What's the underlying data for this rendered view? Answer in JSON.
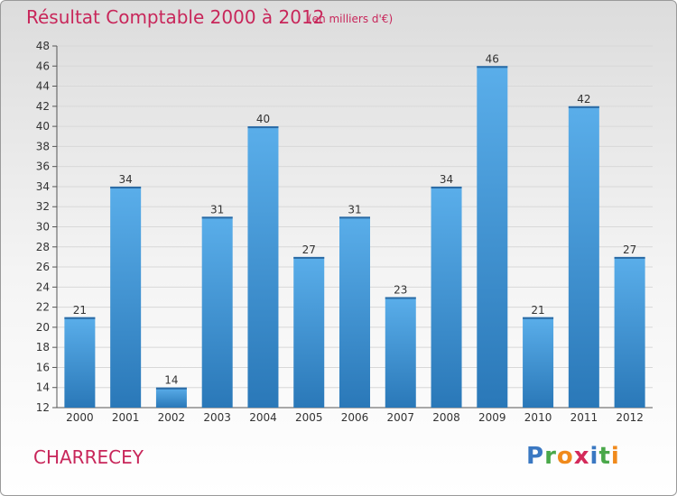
{
  "title": "Résultat Comptable 2000 à 2012",
  "subtitle": "(en milliers d'€)",
  "commune": "CHARRECEY",
  "brand": {
    "letters": [
      "P",
      "r",
      "o",
      "x",
      "i",
      "t",
      "i"
    ],
    "colors": [
      "#3a78c2",
      "#4aa84a",
      "#f08a1c",
      "#d42a5a",
      "#3a78c2",
      "#4aa84a",
      "#f08a1c"
    ]
  },
  "colors": {
    "bar": "#3d8fd4",
    "accent": "#c8265a"
  },
  "chart_data": {
    "type": "bar",
    "title": "Résultat Comptable 2000 à 2012",
    "subtitle": "(en milliers d'€)",
    "xlabel": "",
    "ylabel": "",
    "categories": [
      "2000",
      "2001",
      "2002",
      "2003",
      "2004",
      "2005",
      "2006",
      "2007",
      "2008",
      "2009",
      "2010",
      "2011",
      "2012"
    ],
    "values": [
      21,
      34,
      14,
      31,
      40,
      27,
      31,
      23,
      34,
      46,
      21,
      42,
      27
    ],
    "ylim": [
      12,
      48
    ],
    "yticks": [
      12,
      14,
      16,
      18,
      20,
      22,
      24,
      26,
      28,
      30,
      32,
      34,
      36,
      38,
      40,
      42,
      44,
      46,
      48
    ],
    "grid": true,
    "legend": "none"
  }
}
